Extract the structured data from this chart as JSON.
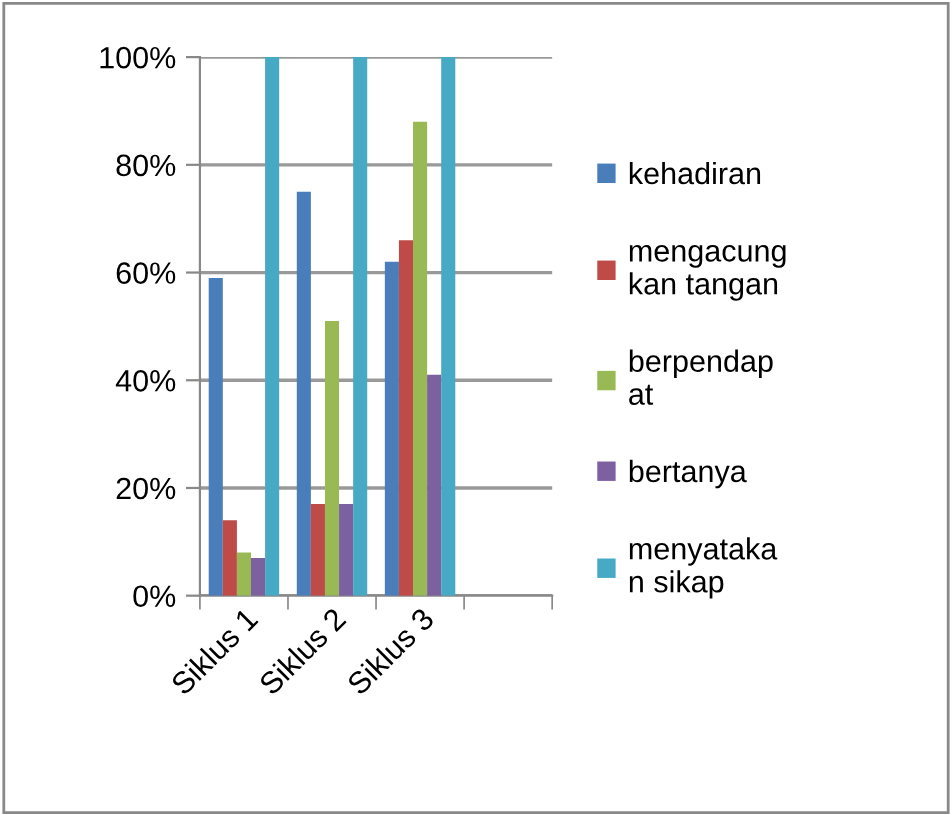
{
  "chart_data": {
    "type": "bar",
    "categories": [
      "Siklus 1",
      "Siklus 2",
      "Siklus 3",
      null
    ],
    "series": [
      {
        "name": "kehadiran",
        "color": "#4a7ebb",
        "values": [
          59,
          75,
          62,
          null
        ]
      },
      {
        "name": "mengacung\nkan tangan",
        "color": "#be4b48",
        "values": [
          14,
          17,
          66,
          null
        ]
      },
      {
        "name": "berpendap\nat",
        "color": "#98b954",
        "values": [
          8,
          51,
          88,
          null
        ]
      },
      {
        "name": "bertanya",
        "color": "#7d60a0",
        "values": [
          7,
          17,
          41,
          null
        ]
      },
      {
        "name": "menyataka\nn sikap",
        "color": "#46aac5",
        "values": [
          100,
          100,
          100,
          null
        ]
      }
    ],
    "ylim": [
      0,
      100
    ],
    "yticks": [
      {
        "value": 0,
        "label": "0%"
      },
      {
        "value": 20,
        "label": "20%"
      },
      {
        "value": 40,
        "label": "40%"
      },
      {
        "value": 60,
        "label": "60%"
      },
      {
        "value": 80,
        "label": "80%"
      },
      {
        "value": 100,
        "label": "100%"
      }
    ],
    "grid": "y",
    "legend": "right"
  }
}
